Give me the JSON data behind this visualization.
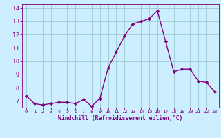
{
  "x": [
    0,
    1,
    2,
    3,
    4,
    5,
    6,
    7,
    8,
    9,
    10,
    11,
    12,
    13,
    14,
    15,
    16,
    17,
    18,
    19,
    20,
    21,
    22,
    23
  ],
  "y": [
    7.4,
    6.8,
    6.7,
    6.8,
    6.9,
    6.9,
    6.8,
    7.1,
    6.6,
    7.2,
    9.5,
    10.7,
    11.9,
    12.8,
    13.0,
    13.2,
    13.8,
    11.5,
    9.2,
    9.4,
    9.4,
    8.5,
    8.4,
    7.7
  ],
  "line_color": "#800080",
  "marker": "D",
  "marker_size": 2.2,
  "bg_color": "#cceeff",
  "grid_color": "#99cccc",
  "xlabel": "Windchill (Refroidissement éolien,°C)",
  "xlabel_color": "#800080",
  "tick_color": "#800080",
  "ylim": [
    6.5,
    14.3
  ],
  "xlim": [
    -0.5,
    23.5
  ],
  "yticks": [
    7,
    8,
    9,
    10,
    11,
    12,
    13,
    14
  ],
  "xticks": [
    0,
    1,
    2,
    3,
    4,
    5,
    6,
    7,
    8,
    9,
    10,
    11,
    12,
    13,
    14,
    15,
    16,
    17,
    18,
    19,
    20,
    21,
    22,
    23
  ],
  "line_width": 1.0
}
